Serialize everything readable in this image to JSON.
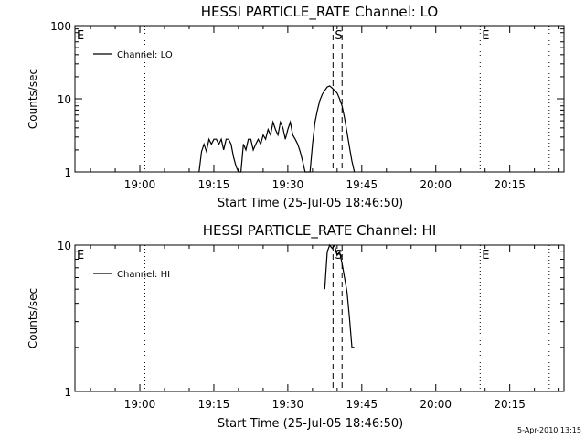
{
  "chart_data": [
    {
      "type": "line",
      "title": "HESSI PARTICLE_RATE Channel: LO",
      "xlabel": "Start Time (25-Jul-05 18:46:50)",
      "ylabel": "Counts/sec",
      "yscale": "log",
      "xlim": [
        "18:46:50",
        "20:26:00"
      ],
      "ylim": [
        1,
        100
      ],
      "xticks": [
        "19:00",
        "19:15",
        "19:30",
        "19:45",
        "20:00",
        "20:15"
      ],
      "yticks": [
        "1",
        "10",
        "100"
      ],
      "legend": {
        "position": "top-left",
        "entries": [
          "Channel: LO"
        ]
      },
      "series": [
        {
          "name": "Channel: LO",
          "x": [
            "19:12:00",
            "19:12:30",
            "19:13:00",
            "19:13:30",
            "19:14:00",
            "19:14:30",
            "19:15:00",
            "19:15:30",
            "19:16:00",
            "19:16:30",
            "19:17:00",
            "19:17:30",
            "19:18:00",
            "19:18:30",
            "19:19:00",
            "19:19:30",
            "19:20:00",
            "19:20:30",
            "19:21:00",
            "19:21:30",
            "19:22:00",
            "19:22:30",
            "19:23:00",
            "19:23:30",
            "19:24:00",
            "19:24:30",
            "19:25:00",
            "19:25:30",
            "19:26:00",
            "19:26:30",
            "19:27:00",
            "19:27:30",
            "19:28:00",
            "19:28:30",
            "19:29:00",
            "19:29:30",
            "19:30:00",
            "19:30:30",
            "19:31:00",
            "19:31:30",
            "19:32:00",
            "19:32:30",
            "19:33:00",
            "19:33:30",
            "19:34:30",
            "19:35:00",
            "19:35:30",
            "19:36:00",
            "19:36:30",
            "19:37:00",
            "19:37:30",
            "19:38:00",
            "19:38:30",
            "19:39:00",
            "19:39:30",
            "19:40:00",
            "19:40:30",
            "19:41:00",
            "19:41:30",
            "19:42:00",
            "19:42:30",
            "19:43:00",
            "19:43:30"
          ],
          "y": [
            1,
            1.9,
            2.4,
            1.9,
            2.8,
            2.4,
            2.8,
            2.8,
            2.4,
            2.8,
            2.0,
            2.8,
            2.8,
            2.4,
            1.6,
            1.2,
            1,
            1,
            2.4,
            2.0,
            2.8,
            2.8,
            2.0,
            2.4,
            2.8,
            2.4,
            3.2,
            2.8,
            3.8,
            3.2,
            4.8,
            3.8,
            3.2,
            4.8,
            4.0,
            2.8,
            3.8,
            4.8,
            3.2,
            2.8,
            2.4,
            1.9,
            1.4,
            1,
            1,
            2.4,
            4.8,
            7.0,
            9.5,
            11.5,
            13.0,
            14.5,
            15.0,
            14.0,
            13.0,
            12.0,
            10.0,
            8.0,
            5.5,
            3.5,
            2.2,
            1.4,
            1
          ]
        }
      ],
      "vlines": [
        {
          "label": "E",
          "x": "18:46:50",
          "style": "dotted"
        },
        {
          "label": "",
          "x": "19:01:00",
          "style": "dotted"
        },
        {
          "label": "S",
          "x": "19:39:10",
          "style": "dashed"
        },
        {
          "label": "",
          "x": "19:41:00",
          "style": "dashed"
        },
        {
          "label": "E",
          "x": "20:09:00",
          "style": "dotted"
        },
        {
          "label": "",
          "x": "20:23:00",
          "style": "dotted"
        }
      ]
    },
    {
      "type": "line",
      "title": "HESSI PARTICLE_RATE Channel: HI",
      "xlabel": "Start Time (25-Jul-05 18:46:50)",
      "ylabel": "Counts/sec",
      "yscale": "log",
      "xlim": [
        "18:46:50",
        "20:26:00"
      ],
      "ylim": [
        1,
        10
      ],
      "xticks": [
        "19:00",
        "19:15",
        "19:30",
        "19:45",
        "20:00",
        "20:15"
      ],
      "yticks": [
        "1",
        "10"
      ],
      "legend": {
        "position": "top-left",
        "entries": [
          "Channel: HI"
        ]
      },
      "series": [
        {
          "name": "Channel: HI",
          "x": [
            "19:37:30",
            "19:38:00",
            "19:38:30",
            "19:39:00",
            "19:39:30",
            "19:40:00",
            "19:40:30",
            "19:41:00",
            "19:41:30",
            "19:42:00",
            "19:42:30",
            "19:43:00",
            "19:43:30"
          ],
          "y": [
            5.0,
            9.0,
            10.0,
            9.5,
            10.0,
            8.5,
            9.0,
            7.5,
            6.0,
            4.8,
            3.2,
            2.0,
            2.0
          ]
        }
      ],
      "vlines": [
        {
          "label": "E",
          "x": "18:46:50",
          "style": "dotted"
        },
        {
          "label": "",
          "x": "19:01:00",
          "style": "dotted"
        },
        {
          "label": "S",
          "x": "19:39:10",
          "style": "dashed"
        },
        {
          "label": "",
          "x": "19:41:00",
          "style": "dashed"
        },
        {
          "label": "E",
          "x": "20:09:00",
          "style": "dotted"
        },
        {
          "label": "",
          "x": "20:23:00",
          "style": "dotted"
        }
      ]
    }
  ],
  "footer": "5-Apr-2010 13:15"
}
